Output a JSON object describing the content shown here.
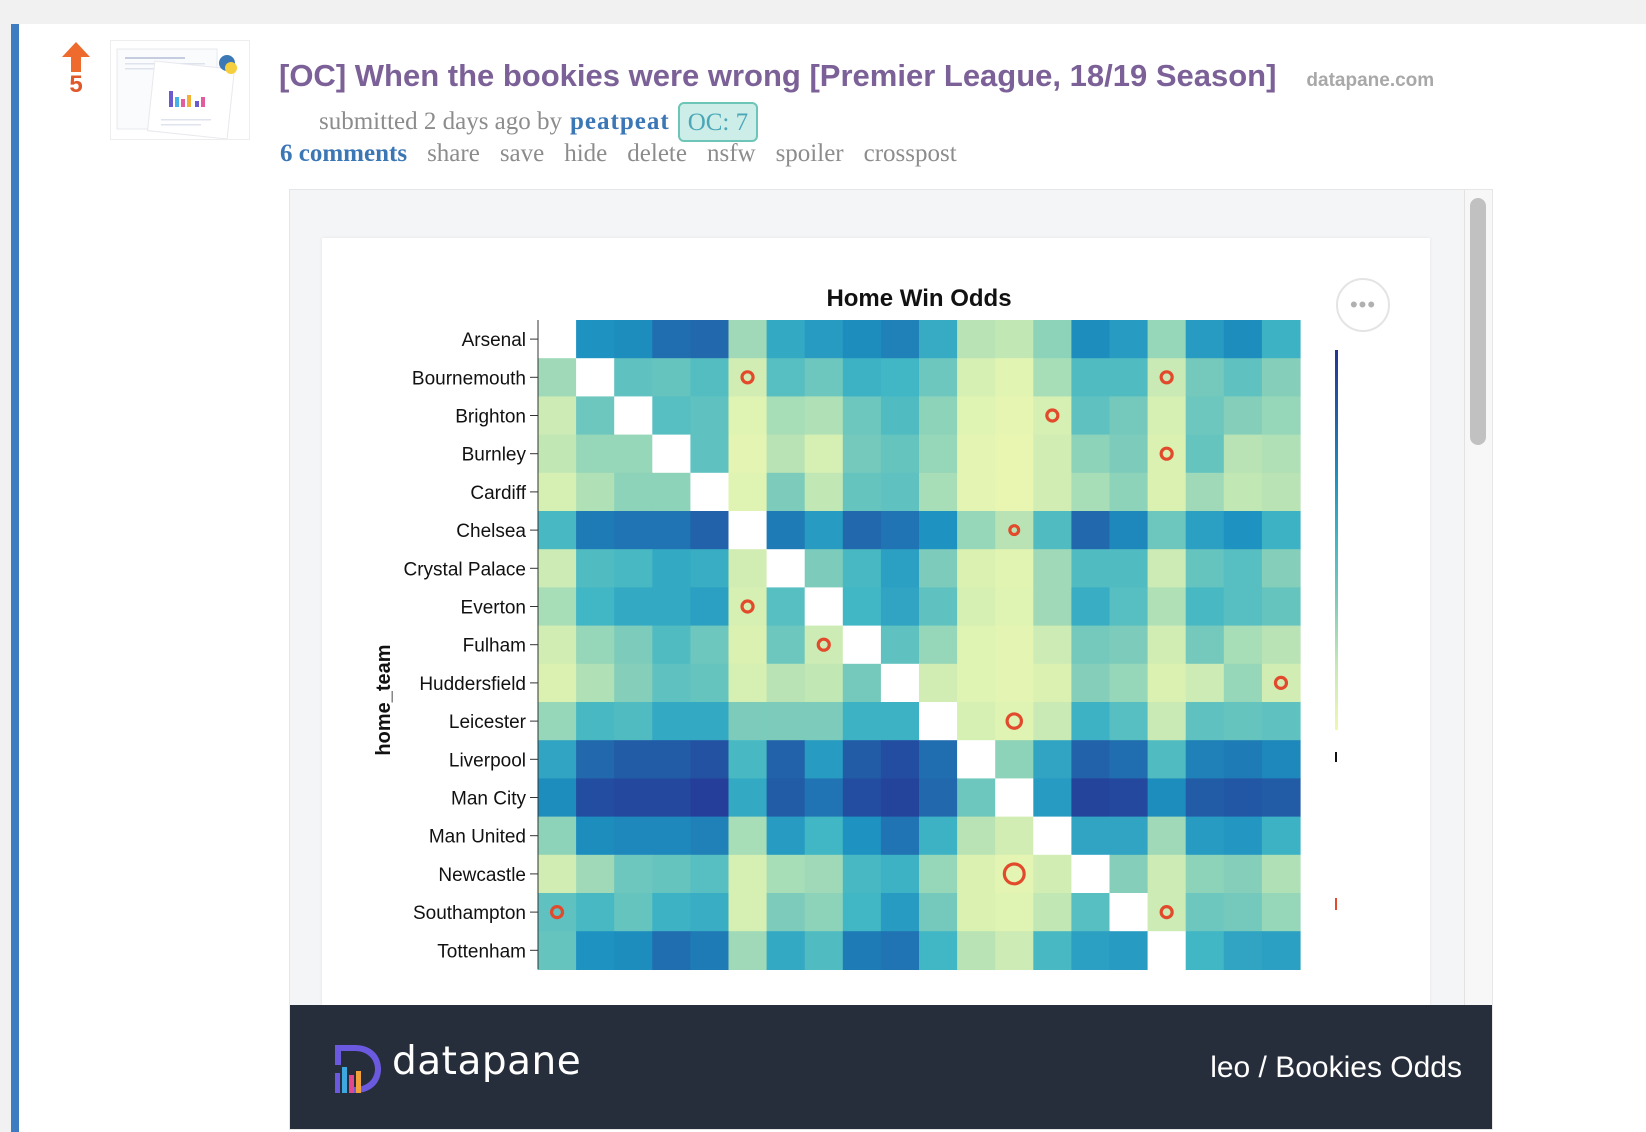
{
  "post": {
    "score": "5",
    "title": "[OC] When the bookies were wrong [Premier League, 18/19 Season]",
    "domain": "datapane.com",
    "submitted_prefix": "submitted 2 days ago by",
    "author": "peatpeat",
    "flair": "OC: 7",
    "buttons": [
      "6 comments",
      "share",
      "save",
      "hide",
      "delete",
      "nsfw",
      "spoiler",
      "crosspost"
    ]
  },
  "embed": {
    "footer_brand": "datapane",
    "report_name": "leo / Bookies Odds",
    "more_button": "•••"
  },
  "colors": {
    "accent_bar": "#3e7bc0",
    "title": "#7b6197",
    "link": "#3b76b5",
    "upvote": "#e0582a",
    "footer_bg": "#272e3b",
    "marker": "#e24a2c"
  },
  "chart_data": {
    "type": "heatmap",
    "title": "Home Win Odds",
    "ylabel": "home_team",
    "xlabel": "",
    "colorscale": [
      "#edf8b1",
      "#c7e9b4",
      "#7fcdbb",
      "#41b6c4",
      "#1d91c0",
      "#225ea8",
      "#253494"
    ],
    "rows": [
      "Arsenal",
      "Bournemouth",
      "Brighton",
      "Burnley",
      "Cardiff",
      "Chelsea",
      "Crystal Palace",
      "Everton",
      "Fulham",
      "Huddersfield",
      "Leicester",
      "Liverpool",
      "Man City",
      "Man United",
      "Newcastle",
      "Southampton",
      "Tottenham"
    ],
    "n_columns": 20,
    "values": [
      [
        null,
        0.66,
        0.68,
        0.78,
        0.8,
        0.26,
        0.56,
        0.62,
        0.68,
        0.72,
        0.55,
        0.2,
        0.18,
        0.3,
        0.68,
        0.62,
        0.28,
        0.62,
        0.68,
        0.52
      ],
      [
        0.26,
        null,
        0.42,
        0.4,
        0.45,
        0.12,
        0.44,
        0.38,
        0.52,
        0.5,
        0.38,
        0.1,
        0.05,
        0.24,
        0.46,
        0.46,
        0.16,
        0.36,
        0.42,
        0.32
      ],
      [
        0.14,
        0.38,
        null,
        0.44,
        0.42,
        0.06,
        0.24,
        0.22,
        0.38,
        0.46,
        0.3,
        0.06,
        0.03,
        0.1,
        0.42,
        0.36,
        0.1,
        0.38,
        0.32,
        0.28
      ],
      [
        0.18,
        0.28,
        0.28,
        null,
        0.42,
        0.04,
        0.2,
        0.1,
        0.36,
        0.4,
        0.28,
        0.04,
        0.02,
        0.12,
        0.3,
        0.34,
        0.08,
        0.4,
        0.2,
        0.22
      ],
      [
        0.1,
        0.22,
        0.3,
        0.3,
        null,
        0.06,
        0.34,
        0.18,
        0.4,
        0.42,
        0.24,
        0.04,
        0.02,
        0.12,
        0.24,
        0.3,
        0.08,
        0.26,
        0.18,
        0.2
      ],
      [
        0.48,
        0.74,
        0.76,
        0.76,
        0.82,
        null,
        0.74,
        0.62,
        0.8,
        0.76,
        0.66,
        0.28,
        0.2,
        0.46,
        0.8,
        0.7,
        0.38,
        0.6,
        0.66,
        0.52
      ],
      [
        0.14,
        0.46,
        0.48,
        0.56,
        0.54,
        0.12,
        null,
        0.34,
        0.48,
        0.6,
        0.34,
        0.08,
        0.05,
        0.26,
        0.46,
        0.46,
        0.14,
        0.4,
        0.44,
        0.32
      ],
      [
        0.24,
        0.5,
        0.56,
        0.56,
        0.6,
        0.1,
        0.44,
        null,
        0.5,
        0.58,
        0.42,
        0.1,
        0.06,
        0.26,
        0.54,
        0.44,
        0.22,
        0.48,
        0.44,
        0.4
      ],
      [
        0.12,
        0.28,
        0.34,
        0.46,
        0.38,
        0.08,
        0.38,
        0.14,
        null,
        0.42,
        0.28,
        0.06,
        0.04,
        0.14,
        0.36,
        0.34,
        0.12,
        0.36,
        0.24,
        0.2
      ],
      [
        0.08,
        0.22,
        0.32,
        0.42,
        0.4,
        0.1,
        0.2,
        0.18,
        0.36,
        null,
        0.12,
        0.06,
        0.04,
        0.08,
        0.32,
        0.28,
        0.08,
        0.14,
        0.28,
        0.12
      ],
      [
        0.28,
        0.48,
        0.46,
        0.56,
        0.56,
        0.34,
        0.34,
        0.34,
        0.52,
        0.52,
        null,
        0.1,
        0.06,
        0.16,
        0.52,
        0.44,
        0.16,
        0.42,
        0.4,
        0.42
      ],
      [
        0.58,
        0.8,
        0.84,
        0.84,
        0.88,
        0.48,
        0.82,
        0.62,
        0.84,
        0.9,
        0.78,
        null,
        0.3,
        0.58,
        0.82,
        0.78,
        0.46,
        0.72,
        0.74,
        0.7
      ],
      [
        0.68,
        0.9,
        0.92,
        0.92,
        0.96,
        0.56,
        0.84,
        0.76,
        0.9,
        0.94,
        0.8,
        0.38,
        null,
        0.62,
        0.94,
        0.92,
        0.68,
        0.84,
        0.86,
        0.84
      ],
      [
        0.3,
        0.68,
        0.7,
        0.7,
        0.72,
        0.24,
        0.62,
        0.5,
        0.66,
        0.76,
        0.52,
        0.2,
        0.12,
        null,
        0.58,
        0.58,
        0.26,
        0.62,
        0.64,
        0.52
      ],
      [
        0.12,
        0.26,
        0.38,
        0.4,
        0.44,
        0.1,
        0.24,
        0.26,
        0.48,
        0.52,
        0.28,
        0.08,
        0.04,
        0.12,
        null,
        0.32,
        0.14,
        0.3,
        0.32,
        0.22
      ],
      [
        0.42,
        0.48,
        0.4,
        0.52,
        0.54,
        0.1,
        0.34,
        0.3,
        0.5,
        0.62,
        0.36,
        0.08,
        0.06,
        0.18,
        0.44,
        null,
        0.14,
        0.38,
        0.36,
        0.28
      ],
      [
        0.4,
        0.66,
        0.68,
        0.78,
        0.74,
        0.26,
        0.56,
        0.46,
        0.74,
        0.76,
        0.5,
        0.2,
        0.14,
        0.48,
        0.6,
        0.62,
        null,
        0.5,
        0.58,
        0.6
      ]
    ],
    "upsets": [
      {
        "row": "Bournemouth",
        "col": 6,
        "size": 1
      },
      {
        "row": "Bournemouth",
        "col": 17,
        "size": 1
      },
      {
        "row": "Brighton",
        "col": 14,
        "size": 1
      },
      {
        "row": "Burnley",
        "col": 17,
        "size": 1
      },
      {
        "row": "Chelsea",
        "col": 13,
        "size": 0.8
      },
      {
        "row": "Everton",
        "col": 6,
        "size": 1
      },
      {
        "row": "Fulham",
        "col": 8,
        "size": 1
      },
      {
        "row": "Huddersfield",
        "col": 20,
        "size": 1
      },
      {
        "row": "Leicester",
        "col": 13,
        "size": 1.3
      },
      {
        "row": "Newcastle",
        "col": 13,
        "size": 1.8
      },
      {
        "row": "Southampton",
        "col": 1,
        "size": 1
      },
      {
        "row": "Southampton",
        "col": 17,
        "size": 1
      }
    ],
    "grid": false,
    "legend": "right"
  }
}
